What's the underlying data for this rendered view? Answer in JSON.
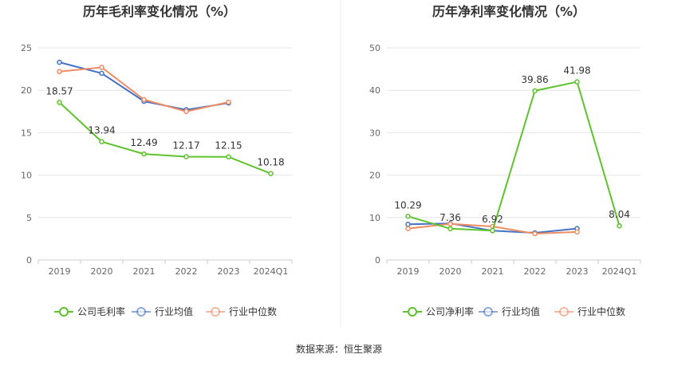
{
  "source_text": "数据来源：恒生聚源",
  "chart_data": [
    {
      "type": "line",
      "title": "历年毛利率变化情况（%）",
      "categories": [
        "2019",
        "2020",
        "2021",
        "2022",
        "2023",
        "2024Q1"
      ],
      "ylim": [
        0,
        25
      ],
      "yticks": [
        "0",
        "5",
        "10",
        "15",
        "20",
        "25"
      ],
      "grid": true,
      "legend_position": "bottom",
      "series": [
        {
          "name": "公司毛利率",
          "color": "#5ec32d",
          "values": [
            18.57,
            13.94,
            12.49,
            12.17,
            12.15,
            10.18
          ],
          "labels": [
            "18.57",
            "13.94",
            "12.49",
            "12.17",
            "12.15",
            "10.18"
          ]
        },
        {
          "name": "行业均值",
          "color": "#4472c4",
          "values": [
            23.3,
            22.0,
            18.7,
            17.7,
            18.5,
            null
          ]
        },
        {
          "name": "行业中位数",
          "color": "#f08c64",
          "values": [
            22.2,
            22.7,
            18.9,
            17.5,
            18.6,
            null
          ]
        }
      ]
    },
    {
      "type": "line",
      "title": "历年净利率变化情况（%）",
      "categories": [
        "2019",
        "2020",
        "2021",
        "2022",
        "2023",
        "2024Q1"
      ],
      "ylim": [
        0,
        50
      ],
      "yticks": [
        "0",
        "10",
        "20",
        "30",
        "40",
        "50"
      ],
      "grid": true,
      "legend_position": "bottom",
      "series": [
        {
          "name": "公司净利率",
          "color": "#5ec32d",
          "values": [
            10.29,
            7.36,
            6.92,
            39.86,
            41.98,
            8.04
          ],
          "labels": [
            "10.29",
            "7.36",
            "6.92",
            "39.86",
            "41.98",
            "8.04"
          ]
        },
        {
          "name": "行业均值",
          "color": "#4472c4",
          "values": [
            8.4,
            8.6,
            6.9,
            6.4,
            7.4,
            null
          ]
        },
        {
          "name": "行业中位数",
          "color": "#f08c64",
          "values": [
            7.4,
            8.5,
            7.9,
            6.2,
            6.6,
            null
          ]
        }
      ]
    }
  ]
}
